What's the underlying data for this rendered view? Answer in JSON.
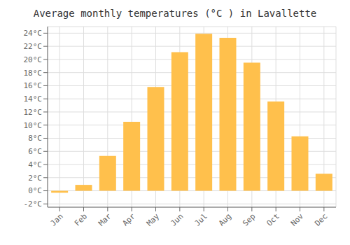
{
  "chart_data": {
    "type": "bar",
    "title": "Average monthly temperatures (°C ) in Lavallette",
    "categories": [
      "Jan",
      "Feb",
      "Mar",
      "Apr",
      "May",
      "Jun",
      "Jul",
      "Aug",
      "Sep",
      "Oct",
      "Nov",
      "Dec"
    ],
    "values": [
      -0.3,
      0.9,
      5.3,
      10.5,
      15.8,
      21.1,
      23.9,
      23.3,
      19.5,
      13.6,
      8.3,
      2.6
    ],
    "color": "#FFC04C",
    "ylim": [
      -2.5,
      25
    ],
    "yticks": [
      {
        "value": -2,
        "label": "-2°C"
      },
      {
        "value": 0,
        "label": "0°C"
      },
      {
        "value": 2,
        "label": "2°C"
      },
      {
        "value": 4,
        "label": "4°C"
      },
      {
        "value": 6,
        "label": "6°C"
      },
      {
        "value": 8,
        "label": "8°C"
      },
      {
        "value": 10,
        "label": "10°C"
      },
      {
        "value": 12,
        "label": "12°C"
      },
      {
        "value": 14,
        "label": "14°C"
      },
      {
        "value": 16,
        "label": "16°C"
      },
      {
        "value": 18,
        "label": "18°C"
      },
      {
        "value": 20,
        "label": "20°C"
      },
      {
        "value": 22,
        "label": "22°C"
      },
      {
        "value": 24,
        "label": "24°C"
      }
    ],
    "grid": true
  }
}
